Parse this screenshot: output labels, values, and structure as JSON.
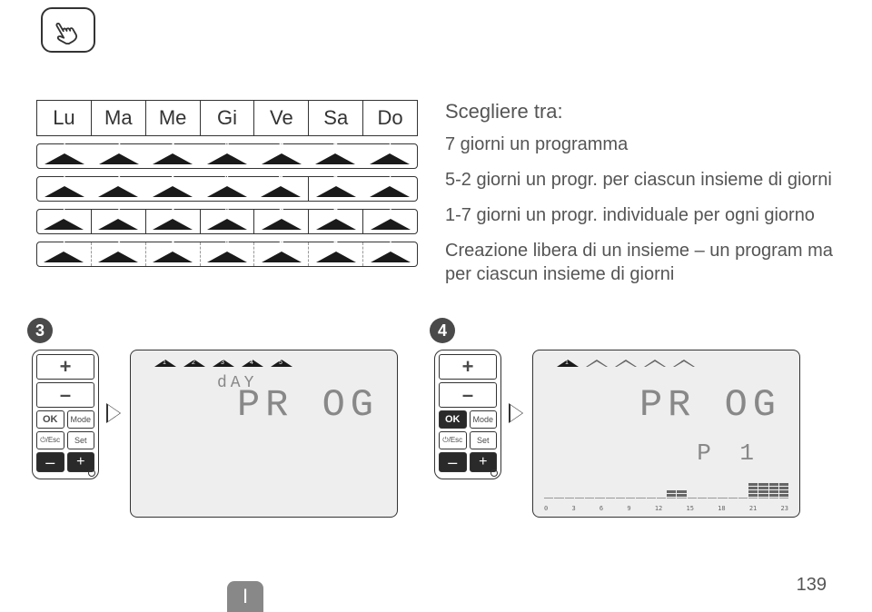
{
  "page_number": "139",
  "lang_tab": "I",
  "days": [
    "Lu",
    "Ma",
    "Me",
    "Gi",
    "Ve",
    "Sa",
    "Do"
  ],
  "tri_numbers": [
    "1",
    "2",
    "3",
    "4",
    "5",
    "6",
    "7"
  ],
  "row_styles": [
    "solid",
    "group52",
    "bordered",
    "dashed"
  ],
  "desc": {
    "title": "Scegliere tra:",
    "l1": "7 giorni un programma",
    "l2": "5-2 giorni un progr. per ciascun insieme di giorni",
    "l3": "1-7 giorni un progr. individuale per ogni giorno",
    "l4": "Creazione libera di un insieme – un program ma per ciascun insieme di giorni"
  },
  "steps": {
    "s3": "3",
    "s4": "4"
  },
  "remote": {
    "plus": "+",
    "minus": "–",
    "ok": "OK",
    "mode": "Mode",
    "esc": "⏻/Esc",
    "set": "Set"
  },
  "lcd3": {
    "day": "dAY",
    "prog": "PR OG",
    "tri_count": 5,
    "tri_filled": [
      1,
      1,
      1,
      1,
      1
    ]
  },
  "lcd4": {
    "prog": "PR OG",
    "p1": "P 1",
    "tri_count": 5,
    "tri_filled": [
      1,
      0,
      0,
      0,
      0
    ],
    "hours": [
      "0",
      "3",
      "6",
      "9",
      "12",
      "15",
      "18",
      "21",
      "23"
    ],
    "bars": [
      0,
      0,
      0,
      0,
      0,
      0,
      0,
      0,
      0,
      0,
      0,
      0,
      2,
      2,
      0,
      0,
      0,
      0,
      0,
      0,
      4,
      4,
      4,
      4
    ]
  },
  "colors": {
    "text": "#4a4a4a",
    "lcd_bg": "#eeeeee",
    "seg": "#888888",
    "tri": "#1a1a1a"
  }
}
